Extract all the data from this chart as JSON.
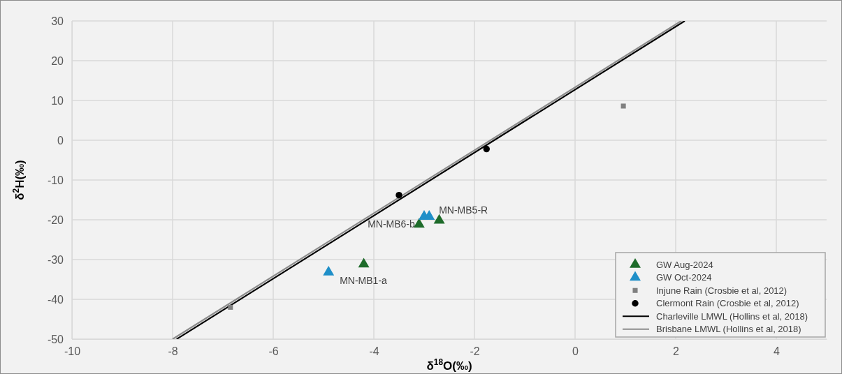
{
  "chart_data": {
    "type": "scatter",
    "xlabel": "δ$^{18}$O(‰)",
    "ylabel": "δ$^{2}$H(‰)",
    "xlim": [
      -10,
      5
    ],
    "ylim": [
      -50,
      30
    ],
    "xticks": [
      -10,
      -8,
      -6,
      -4,
      -2,
      0,
      2,
      4
    ],
    "yticks": [
      -50,
      -40,
      -30,
      -20,
      -10,
      0,
      10,
      20,
      30
    ],
    "grid": true,
    "legend": "bottom right",
    "series": [
      {
        "name": "GW Aug-2024",
        "marker": "triangle",
        "color": "#1e6b2a",
        "x": [
          -4.2,
          -3.1,
          -2.7
        ],
        "values": [
          -31,
          -21,
          -20
        ]
      },
      {
        "name": "GW Oct-2024",
        "marker": "triangle",
        "color": "#1f8fc8",
        "x": [
          -4.9,
          -3.0,
          -2.9
        ],
        "values": [
          -33,
          -19,
          -19
        ]
      },
      {
        "name": "Injune Rain (Crosbie et al, 2012)",
        "marker": "square",
        "color": "#808080",
        "x": [
          -6.85,
          0.96
        ],
        "values": [
          -42,
          8.6
        ]
      },
      {
        "name": "Clermont Rain (Crosbie et al, 2012)",
        "marker": "circle",
        "color": "#000000",
        "x": [
          -3.5,
          -1.76
        ],
        "values": [
          -13.8,
          -2.2
        ]
      },
      {
        "name": "Charleville LMWL (Hollins et al, 2018)",
        "type": "line",
        "marker": "none",
        "color": "#000000",
        "x": [
          -7.92,
          2.18
        ],
        "values": [
          -50,
          30
        ]
      },
      {
        "name": "Brisbane LMWL (Hollins et al, 2018)",
        "type": "line",
        "marker": "none",
        "color": "#8c8c8c",
        "x": [
          -8.0,
          2.11
        ],
        "values": [
          -50,
          30
        ]
      }
    ],
    "annotations": [
      {
        "text": "MN-MB1-a",
        "x": -4.9,
        "y": -33
      },
      {
        "text": "MN-MB6-b",
        "x": -3.1,
        "y": -21
      },
      {
        "text": "MN-MB5-R",
        "x": -2.9,
        "y": -19
      }
    ]
  }
}
